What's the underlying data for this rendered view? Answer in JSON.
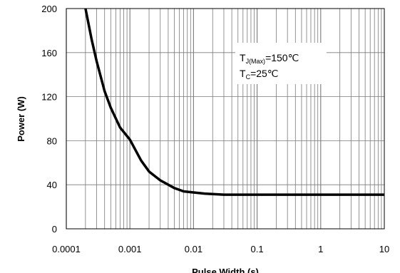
{
  "chart_data": {
    "type": "line",
    "xlabel": "Pulse Width (s)",
    "ylabel": "Power (W)",
    "xscale": "log",
    "xlim": [
      0.0001,
      10
    ],
    "ylim": [
      0,
      200
    ],
    "grid": true,
    "x_ticks": [
      "0.0001",
      "0.001",
      "0.01",
      "0.1",
      "1",
      "10"
    ],
    "y_ticks": [
      "0",
      "40",
      "80",
      "120",
      "160",
      "200"
    ],
    "annotations": [
      {
        "main": "T",
        "sub": "J(Max)",
        "rest": "=150℃"
      },
      {
        "main": "T",
        "sub": "C",
        "rest": "=25℃"
      }
    ],
    "series": [
      {
        "color": "#000000",
        "x": [
          0.0002,
          0.00025,
          0.0003,
          0.0004,
          0.0005,
          0.0007,
          0.001,
          0.0015,
          0.002,
          0.003,
          0.005,
          0.007,
          0.01,
          0.015,
          0.02,
          0.03,
          0.05,
          0.1,
          1,
          10
        ],
        "y": [
          200,
          172,
          152,
          125,
          110,
          92,
          81,
          62,
          52,
          44,
          37,
          34,
          33,
          32,
          31.5,
          31,
          31,
          31,
          31,
          31
        ]
      }
    ]
  }
}
